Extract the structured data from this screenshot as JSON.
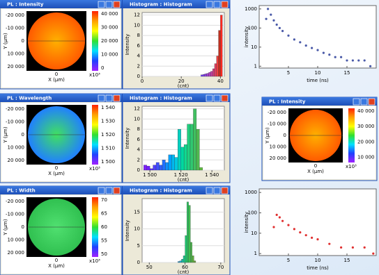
{
  "image_windows": [
    {
      "title": "PL : Intensity",
      "y_label": "Y (µm)",
      "x_label": "X (µm)",
      "x_tick": "0",
      "x_exponent": "x10³",
      "y_ticks": [
        "-20 000",
        "-10 000",
        "0",
        "10 000",
        "20 000"
      ],
      "colorbar_ticks": [
        "40 000",
        "30 000",
        "20 000",
        "10 000",
        "0"
      ],
      "palette": [
        "#ffb000",
        "#ff5a00"
      ]
    },
    {
      "title": "PL : Wavelength",
      "y_label": "Y (µm)",
      "x_label": "X (µm)",
      "x_tick": "0",
      "x_exponent": "x10³",
      "y_ticks": [
        "-20 000",
        "-10 000",
        "0",
        "10 000",
        "20 000"
      ],
      "colorbar_ticks": [
        "1 540",
        "1 530",
        "1 520",
        "1 510",
        "1 500"
      ],
      "palette": [
        "#40e060",
        "#2080ff"
      ]
    },
    {
      "title": "PL : Width",
      "y_label": "Y (µm)",
      "x_label": "X (µm)",
      "x_tick": "0",
      "x_exponent": "x10³",
      "y_ticks": [
        "-20 000",
        "-10 000",
        "0",
        "10 000",
        "20 000"
      ],
      "colorbar_ticks": [
        "70",
        "65",
        "60",
        "55",
        "50"
      ],
      "palette": [
        "#50e070",
        "#30c050"
      ]
    },
    {
      "title": "PL : Intensity",
      "y_label": "Y (µm)",
      "x_label": "X (µm)",
      "x_tick": "0",
      "x_exponent": "x10³",
      "y_ticks": [
        "-20 000",
        "-10 000",
        "0",
        "10 000",
        "20 000"
      ],
      "colorbar_ticks": [
        "40 000",
        "30 000",
        "20 000",
        "10 000"
      ],
      "palette": [
        "#ffb000",
        "#ff5a00"
      ]
    }
  ],
  "histograms": [
    {
      "title": "Histogram : Histogram",
      "y_label": "Intensity",
      "x_label": "(cnt)",
      "xlim": [
        0,
        42
      ],
      "xticks": [
        0,
        20,
        40
      ],
      "ylim": [
        0,
        12.5
      ],
      "yticks": [
        0,
        2,
        4,
        6,
        8,
        10,
        12
      ],
      "bins": [
        30,
        31,
        32,
        33,
        34,
        35,
        36,
        37,
        38,
        39,
        40,
        41
      ],
      "counts": [
        0.3,
        0.4,
        0.5,
        0.6,
        0.8,
        1,
        1.5,
        2.5,
        4,
        9,
        12
      ],
      "colors": [
        "#7040ff",
        "#8040f0",
        "#9040e0",
        "#a040d0",
        "#b040c0",
        "#c040a0",
        "#d04080",
        "#e04060",
        "#f04040",
        "#c03020",
        "#ff2a20"
      ]
    },
    {
      "title": "Histogram : Histogram",
      "y_label": "Intensity",
      "x_label": "(cnt)",
      "xlim": [
        1495,
        1548
      ],
      "xticks": [
        {
          "value": 1500,
          "label": "1 500"
        },
        {
          "value": 1520,
          "label": "1 520"
        },
        {
          "value": 1540,
          "label": "1 540"
        }
      ],
      "ylim": [
        0,
        12.5
      ],
      "yticks": [
        0,
        2,
        4,
        6,
        8,
        10,
        12
      ],
      "bins": [
        1496,
        1498,
        1500,
        1502,
        1504,
        1506,
        1508,
        1510,
        1512,
        1514,
        1516,
        1518,
        1520,
        1522,
        1524,
        1526,
        1528,
        1530,
        1532,
        1534
      ],
      "counts": [
        1,
        0.8,
        0.3,
        1,
        1.5,
        1,
        2,
        1.5,
        3,
        3,
        2.5,
        8,
        4.5,
        5,
        9,
        9,
        12,
        8,
        0.5
      ],
      "colors": [
        "#8020ff",
        "#7020ff",
        "#6030ff",
        "#5040ff",
        "#4050ff",
        "#3060ff",
        "#2070ff",
        "#1090ff",
        "#00a0ff",
        "#00b8f0",
        "#00c8e0",
        "#00d0c0",
        "#00d8a0",
        "#10d890",
        "#20d080",
        "#30c870",
        "#40c060",
        "#50b850",
        "#60c040"
      ]
    },
    {
      "title": "Histogram : Histogram",
      "y_label": "Intensity",
      "x_label": "(cnt)",
      "xlim": [
        48,
        71
      ],
      "xticks": [
        50,
        60,
        70
      ],
      "ylim": [
        0,
        19
      ],
      "yticks": [
        0,
        5,
        10,
        15
      ],
      "bins": [
        58,
        58.5,
        59,
        59.5,
        60,
        60.5,
        61,
        61.5,
        62,
        62.5,
        63
      ],
      "counts": [
        0.3,
        0.5,
        1,
        2,
        8,
        18,
        17,
        6,
        2,
        0.5
      ],
      "colors": [
        "#20a0e0",
        "#20b0d0",
        "#20c0b0",
        "#20c890",
        "#20c870",
        "#30c060",
        "#40c050",
        "#50b850",
        "#60b040",
        "#70a840"
      ]
    }
  ],
  "decay_plots": [
    {
      "x_label": "time (ns)",
      "y_label": "intensity",
      "log_y": true,
      "color": "#4a5aa8",
      "xlim": [
        0,
        20
      ],
      "xticks": [
        5,
        10,
        15
      ],
      "ylim": [
        0.8,
        1500
      ],
      "yticks": [
        1,
        10,
        100,
        1000
      ],
      "x": [
        1.2,
        1.5,
        2,
        2.5,
        3,
        3.5,
        4,
        5,
        6,
        7,
        8,
        9,
        10,
        11,
        12,
        13,
        14,
        15,
        16,
        17,
        18,
        19
      ],
      "y": [
        300,
        1000,
        500,
        250,
        150,
        100,
        70,
        40,
        25,
        18,
        12,
        9,
        7,
        5,
        4,
        3,
        3,
        2,
        2,
        2,
        2,
        1
      ]
    },
    {
      "x_label": "time (ns)",
      "y_label": "intensity",
      "log_y": true,
      "color": "#e03030",
      "xlim": [
        0,
        20
      ],
      "xticks": [
        5,
        10,
        15
      ],
      "ylim": [
        0.8,
        1500
      ],
      "yticks": [
        1,
        10,
        100,
        1000
      ],
      "x": [
        2.5,
        3,
        3.5,
        4,
        5,
        6,
        7,
        8,
        9,
        10,
        12,
        14,
        16,
        18,
        19.5
      ],
      "y": [
        20,
        80,
        60,
        40,
        25,
        16,
        11,
        8,
        6,
        5,
        3,
        2,
        2,
        2,
        1
      ]
    }
  ]
}
